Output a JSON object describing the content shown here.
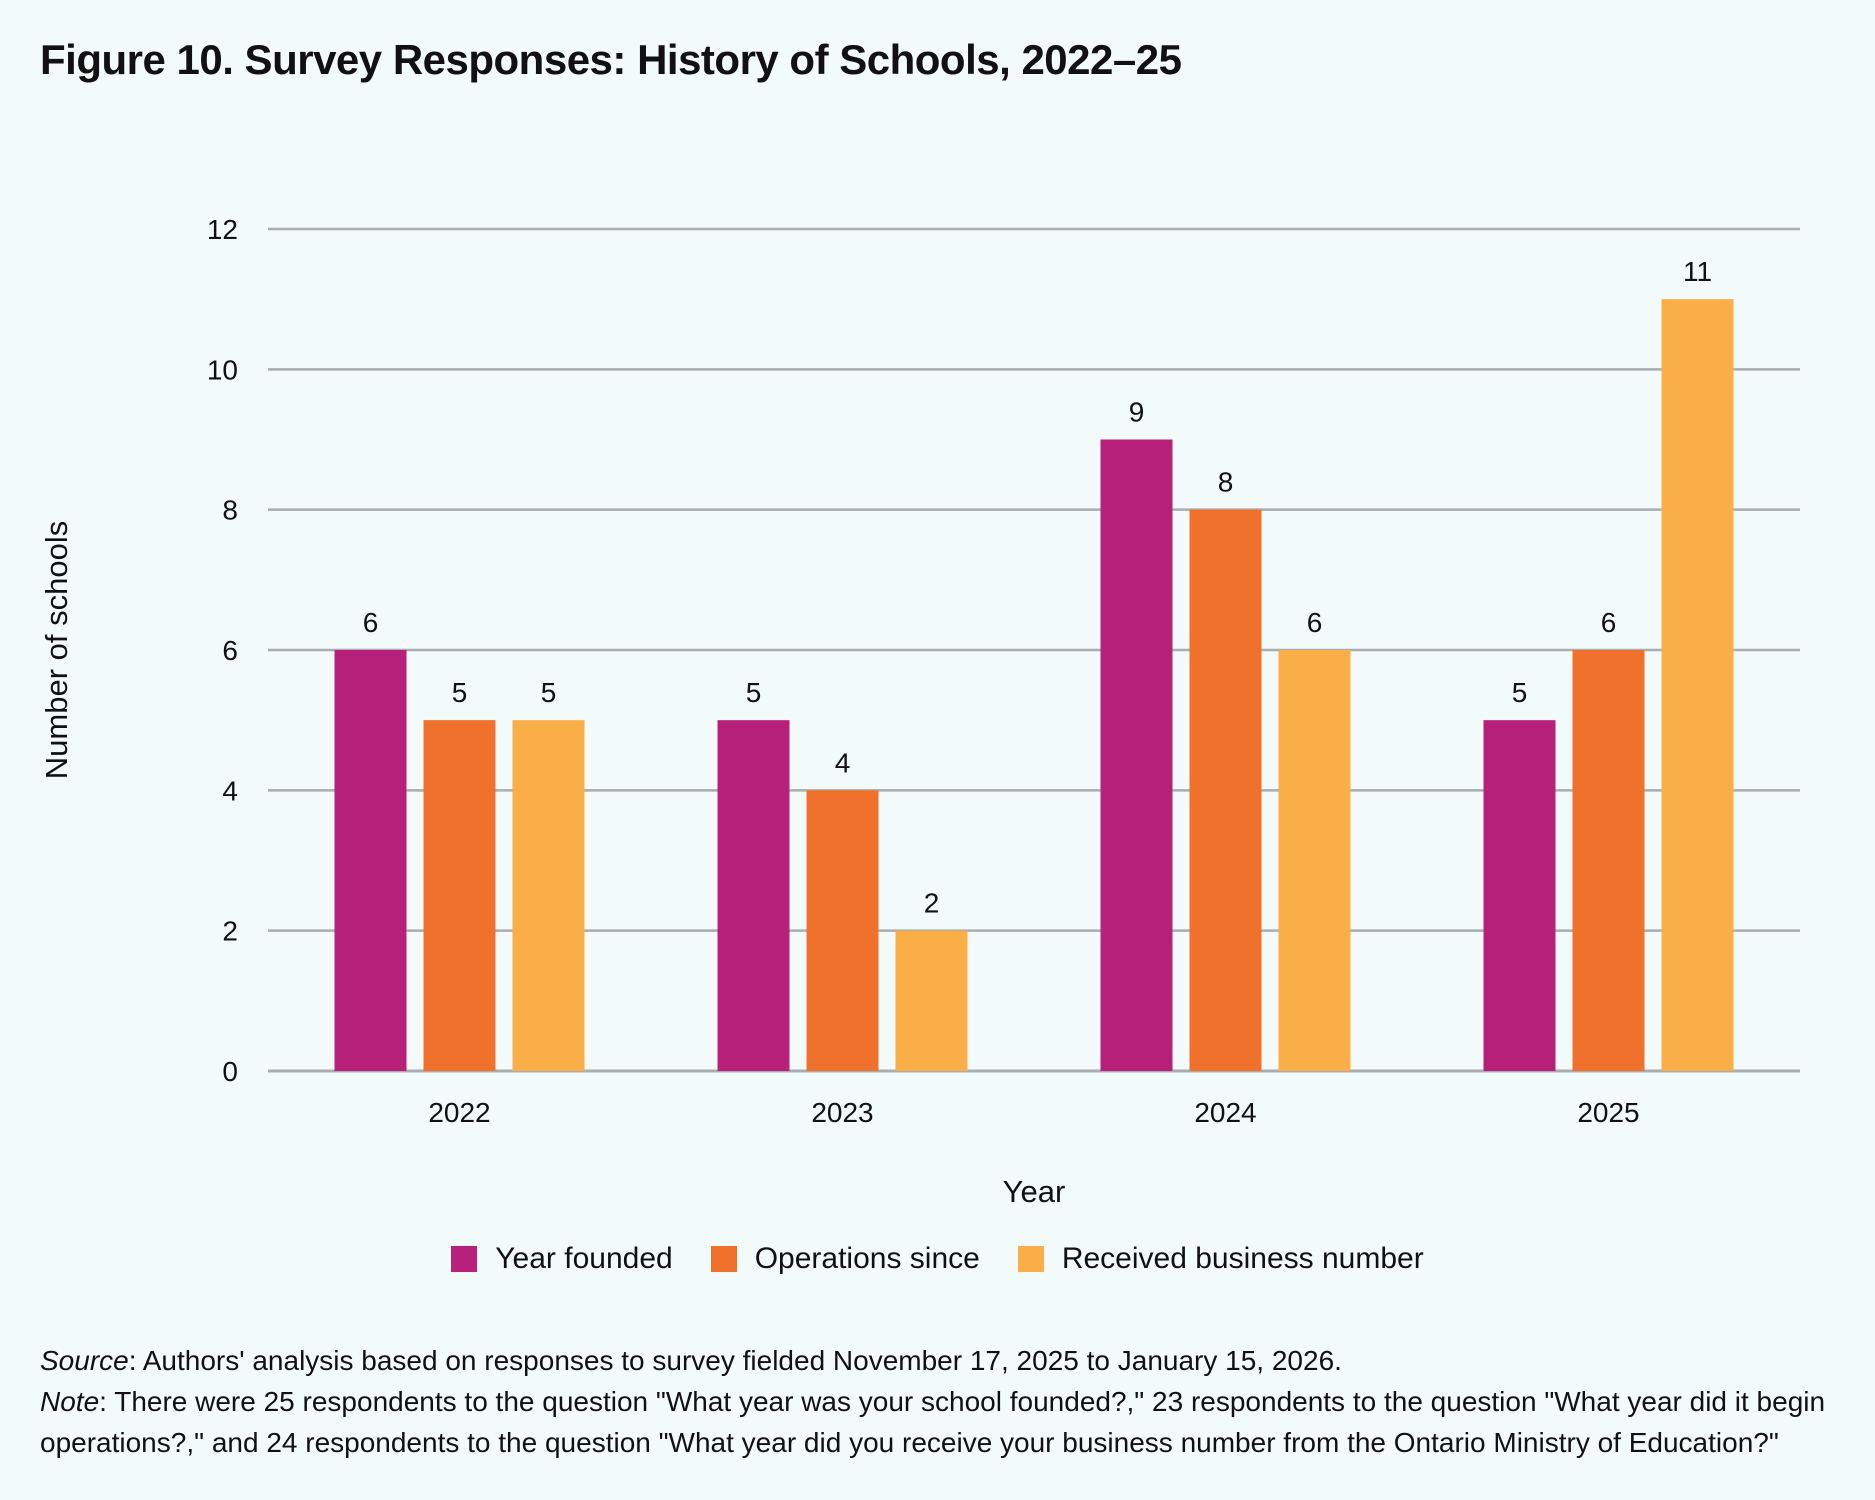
{
  "figure": {
    "title": "Figure 10. Survey Responses: History of Schools, 2022–25"
  },
  "chart_data": {
    "type": "bar",
    "categories": [
      "2022",
      "2023",
      "2024",
      "2025"
    ],
    "series": [
      {
        "name": "Year founded",
        "color": "#b8217a",
        "values": [
          6,
          5,
          9,
          5
        ]
      },
      {
        "name": "Operations since",
        "color": "#f0712c",
        "values": [
          5,
          4,
          8,
          6
        ]
      },
      {
        "name": "Received business number",
        "color": "#f9ae48",
        "values": [
          5,
          2,
          6,
          11
        ]
      }
    ],
    "xlabel": "Year",
    "ylabel": "Number of schools",
    "ylim": [
      0,
      12
    ],
    "yticks": [
      0,
      2,
      4,
      6,
      8,
      10,
      12
    ],
    "grid": true,
    "data_labels": true,
    "legend_position": "bottom"
  },
  "notes": {
    "source_label": "Source",
    "source_text": ": Authors' analysis based on responses to survey fielded November 17, 2025 to January 15, 2026.",
    "note_label": "Note",
    "note_text": ": There were 25 respondents to the question \"What year was your school founded?,\" 23 respondents to the question \"What year did it begin operations?,\" and 24 respondents to the question \"What year did you receive your business number from the Ontario Ministry of Education?\""
  }
}
